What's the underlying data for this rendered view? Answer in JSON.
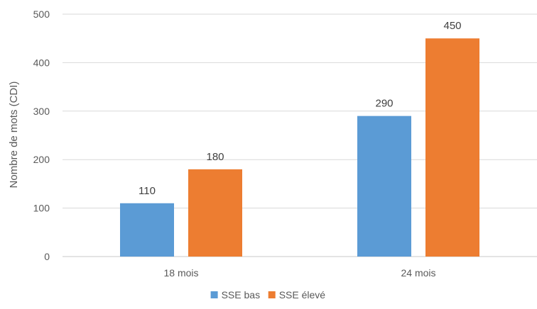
{
  "chart_data": {
    "type": "bar",
    "categories": [
      "18 mois",
      "24 mois"
    ],
    "series": [
      {
        "name": "SSE bas",
        "values": [
          110,
          290
        ],
        "color": "#5b9bd5"
      },
      {
        "name": "SSE élevé",
        "values": [
          180,
          450
        ],
        "color": "#ed7d31"
      }
    ],
    "xlabel": "",
    "ylabel": "Nombre de mots (CDI)",
    "ylim": [
      0,
      500
    ],
    "yticks": [
      0,
      100,
      200,
      300,
      400,
      500
    ],
    "grid": true,
    "legend": "bottom-center",
    "data_labels": true
  }
}
